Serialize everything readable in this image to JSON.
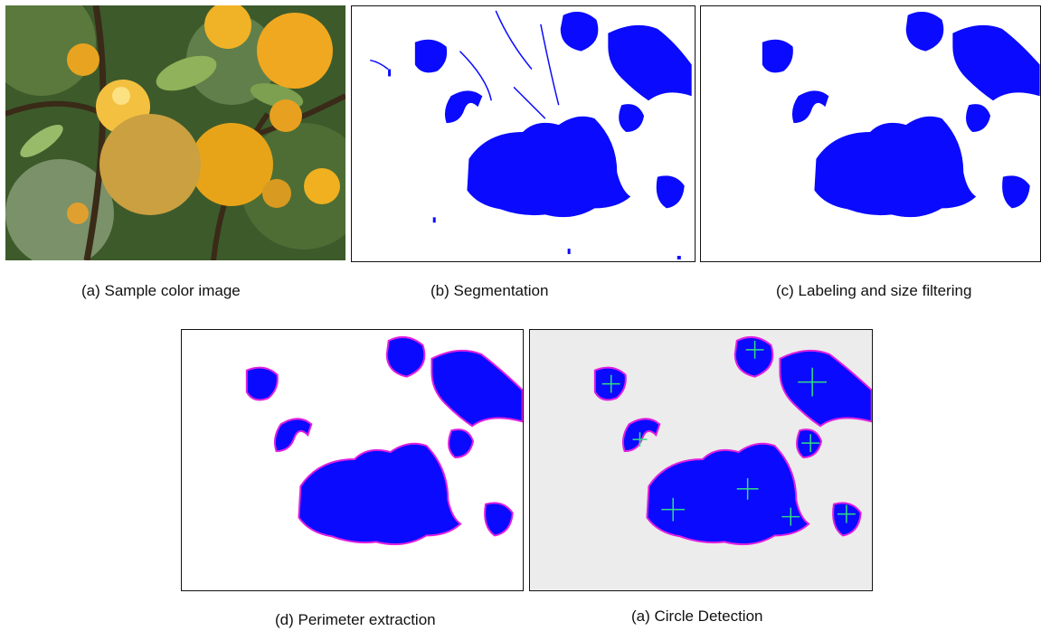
{
  "captions": {
    "a": "(a) Sample color image",
    "b": "(b) Segmentation",
    "c": "(c) Labeling and size filtering",
    "d": "(d) Perimeter extraction",
    "e": "(a) Circle Detection"
  },
  "colors": {
    "fruit_mask": "#0a0aff",
    "perimeter": "#e020e0",
    "circle_marker": "#30e080",
    "detection_background": "#ececec",
    "orange_fruit": "#f0b020",
    "foliage": "#3d5a2a"
  },
  "icons": {
    "circle_center": "crosshair-marker"
  }
}
